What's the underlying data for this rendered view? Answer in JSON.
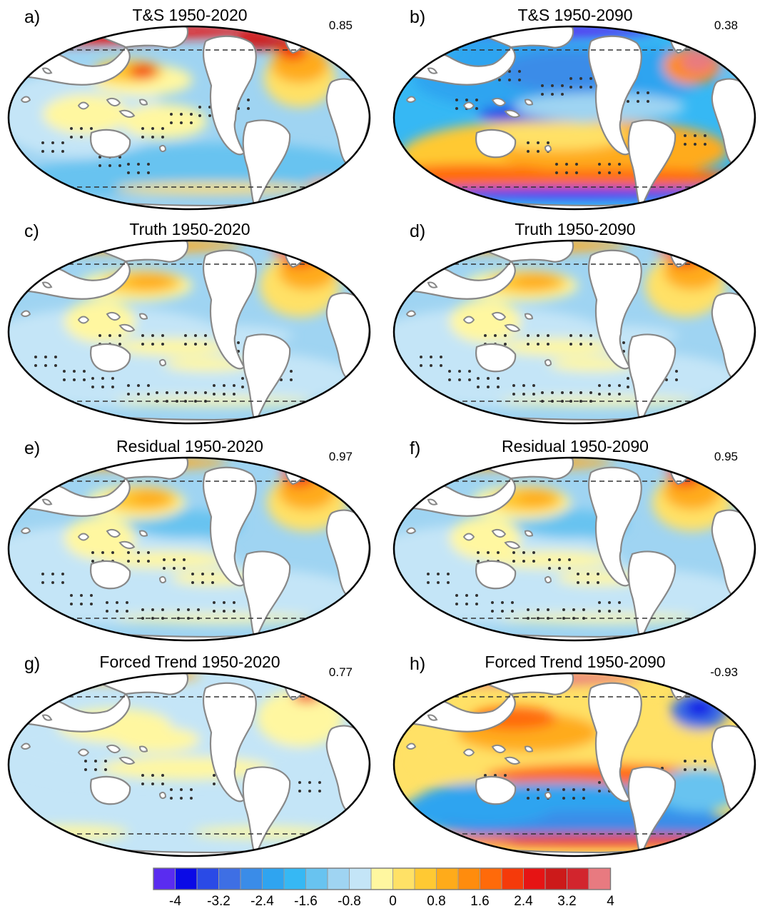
{
  "panels": [
    {
      "label": "a)",
      "title": "T&S 1950-2020",
      "corr": "0.85",
      "pattern": "ts2020"
    },
    {
      "label": "b)",
      "title": "T&S 1950-2090",
      "corr": "0.38",
      "pattern": "ts2090"
    },
    {
      "label": "c)",
      "title": "Truth 1950-2020",
      "corr": "",
      "pattern": "truth"
    },
    {
      "label": "d)",
      "title": "Truth 1950-2090",
      "corr": "",
      "pattern": "truth"
    },
    {
      "label": "e)",
      "title": "Residual 1950-2020",
      "corr": "0.97",
      "pattern": "resid"
    },
    {
      "label": "f)",
      "title": "Residual 1950-2090",
      "corr": "0.95",
      "pattern": "resid"
    },
    {
      "label": "g)",
      "title": "Forced Trend 1950-2020",
      "corr": "0.77",
      "pattern": "forced2020"
    },
    {
      "label": "h)",
      "title": "Forced Trend 1950-2090",
      "corr": "-0.93",
      "pattern": "forced2090"
    }
  ],
  "colorbar": {
    "colors": [
      "#5a2cf0",
      "#0a0ae6",
      "#2a4ae6",
      "#3e6fe4",
      "#3a8ce8",
      "#2fa4f0",
      "#36b8f4",
      "#68c3f0",
      "#9fd4f2",
      "#c4e5f7",
      "#fff7a0",
      "#ffe166",
      "#ffc933",
      "#ffab1a",
      "#ff8c0d",
      "#ff6a0a",
      "#f53a0a",
      "#e61414",
      "#cc1a1a",
      "#d2252d",
      "#e87a80"
    ],
    "tick_labels": [
      "-4",
      "-3.2",
      "-2.4",
      "-1.6",
      "-0.8",
      "0",
      "0.8",
      "1.6",
      "2.4",
      "3.2",
      "4"
    ]
  }
}
